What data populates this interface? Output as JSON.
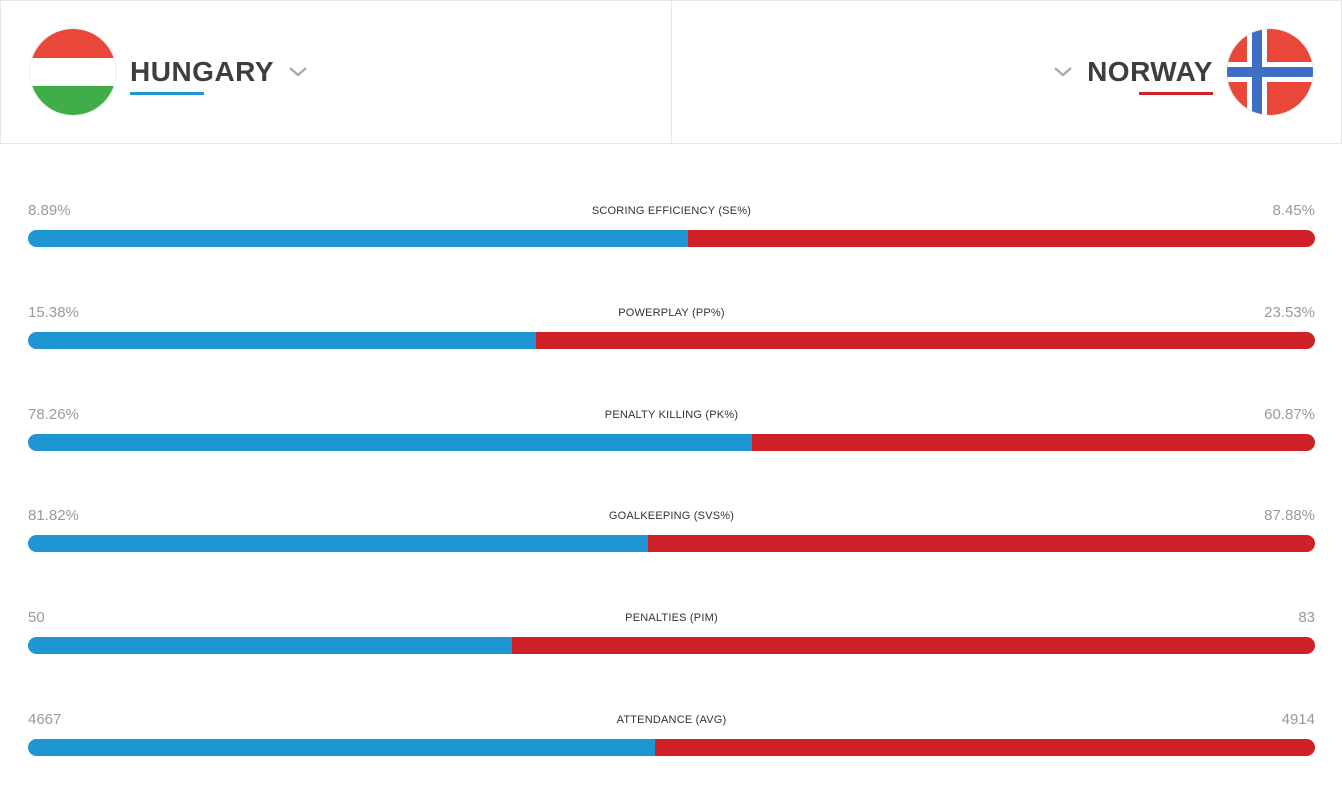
{
  "teams": {
    "home": {
      "name": "HUNGARY",
      "flag": "hungary-flag",
      "color": "#1e96d3"
    },
    "away": {
      "name": "NORWAY",
      "flag": "norway-flag",
      "color": "#cf2027"
    }
  },
  "stats": [
    {
      "label": "SCORING EFFICIENCY (SE%)",
      "home": "8.89%",
      "away": "8.45%",
      "home_share": 0.513
    },
    {
      "label": "POWERPLAY (PP%)",
      "home": "15.38%",
      "away": "23.53%",
      "home_share": 0.395
    },
    {
      "label": "PENALTY KILLING (PK%)",
      "home": "78.26%",
      "away": "60.87%",
      "home_share": 0.5625
    },
    {
      "label": "GOALKEEPING (SVS%)",
      "home": "81.82%",
      "away": "87.88%",
      "home_share": 0.482
    },
    {
      "label": "PENALTIES (PIM)",
      "home": "50",
      "away": "83",
      "home_share": 0.376
    },
    {
      "label": "ATTENDANCE (AVG)",
      "home": "4667",
      "away": "4914",
      "home_share": 0.487
    }
  ]
}
